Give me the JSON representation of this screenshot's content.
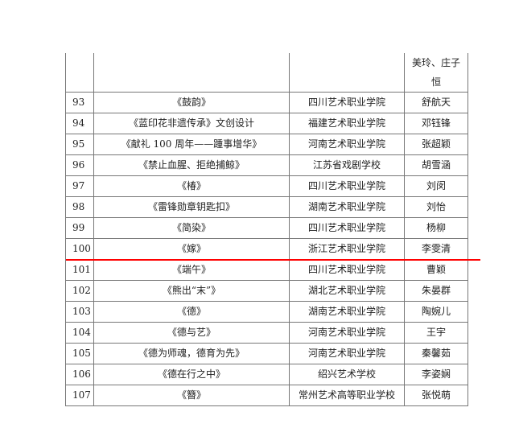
{
  "table": {
    "first_row": {
      "no": "",
      "title": "",
      "school": "",
      "names_line1": "美玲、庄子",
      "names_line2": "恒"
    },
    "rows": [
      {
        "no": "93",
        "title": "《鼓韵》",
        "school": "四川艺术职业学院",
        "name": "舒航天"
      },
      {
        "no": "94",
        "title": "《蓝印花非遗传承》文创设计",
        "school": "福建艺术职业学院",
        "name": "邓钰锋"
      },
      {
        "no": "95",
        "title": "《献礼 100 周年——踵事增华》",
        "school": "河南艺术职业学院",
        "name": "张超颖"
      },
      {
        "no": "96",
        "title": "《禁止血腥、拒绝捕鲸》",
        "school": "江苏省戏剧学校",
        "name": "胡雪涵"
      },
      {
        "no": "97",
        "title": "《椿》",
        "school": "四川艺术职业学院",
        "name": "刘闵"
      },
      {
        "no": "98",
        "title": "《雷锋勋章钥匙扣》",
        "school": "湖南艺术职业学院",
        "name": "刘怡"
      },
      {
        "no": "99",
        "title": "《简染》",
        "school": "四川艺术职业学院",
        "name": "杨柳"
      },
      {
        "no": "100",
        "title": "《嫁》",
        "school": "浙江艺术职业学院",
        "name": "李雯清"
      },
      {
        "no": "101",
        "title": "《端午》",
        "school": "四川艺术职业学院",
        "name": "曹颖"
      },
      {
        "no": "102",
        "title": "《熊出“末”》",
        "school": "湖北艺术职业学院",
        "name": "朱晏群"
      },
      {
        "no": "103",
        "title": "《德》",
        "school": "湖南艺术职业学院",
        "name": "陶婉儿"
      },
      {
        "no": "104",
        "title": "《德与艺》",
        "school": "河南艺术职业学院",
        "name": "王宇"
      },
      {
        "no": "105",
        "title": "《德为师魂，德育为先》",
        "school": "河南艺术职业学院",
        "name": "秦馨茹"
      },
      {
        "no": "106",
        "title": "《德在行之中》",
        "school": "绍兴艺术学校",
        "name": "李姿娴"
      },
      {
        "no": "107",
        "title": "《簪》",
        "school": "常州艺术高等职业学校",
        "name": "张悦萌"
      }
    ]
  },
  "annotation": {
    "red_line_color": "#ff0000"
  }
}
